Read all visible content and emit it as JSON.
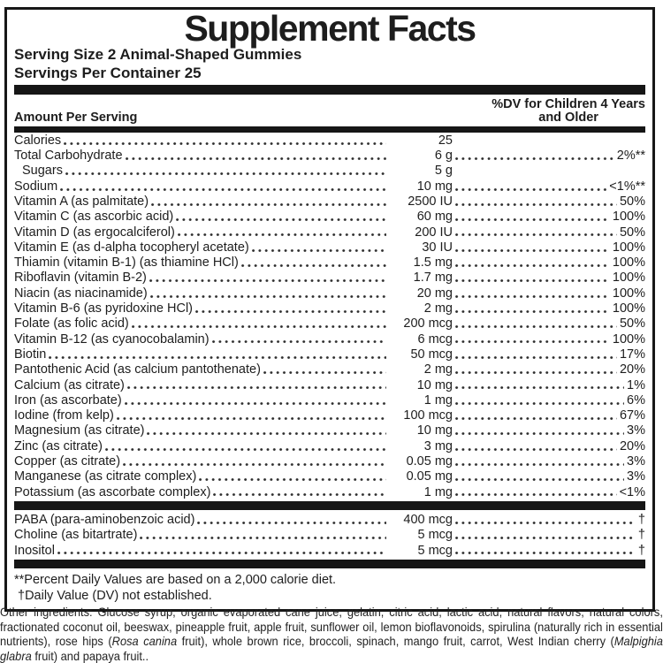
{
  "title": "Supplement Facts",
  "serving": {
    "size": "Serving Size 2 Animal-Shaped Gummies",
    "per_container": "Servings Per Container 25"
  },
  "columns": {
    "left": "Amount Per Serving",
    "right_line1": "%DV for Children 4 Years",
    "right_line2": "and Older"
  },
  "nutrients": [
    {
      "name": "Calories",
      "amount": "25",
      "dv": ""
    },
    {
      "name": "Total Carbohydrate",
      "amount": "6 g",
      "dv": "2%**"
    },
    {
      "name": "Sugars",
      "amount": "5 g",
      "dv": "",
      "indent": true
    },
    {
      "name": "Sodium",
      "amount": "10 mg",
      "dv": "<1%**"
    },
    {
      "name": "Vitamin A (as palmitate)",
      "amount": "2500 IU",
      "dv": "50%"
    },
    {
      "name": "Vitamin C (as ascorbic acid)",
      "amount": "60 mg",
      "dv": "100%"
    },
    {
      "name": "Vitamin D (as ergocalciferol)",
      "amount": "200 IU",
      "dv": "50%"
    },
    {
      "name": "Vitamin E (as d-alpha tocopheryl acetate)",
      "amount": "30 IU",
      "dv": "100%"
    },
    {
      "name": "Thiamin (vitamin B-1) (as thiamine HCl)",
      "amount": "1.5 mg",
      "dv": "100%"
    },
    {
      "name": "Riboflavin (vitamin B-2)",
      "amount": "1.7 mg",
      "dv": "100%"
    },
    {
      "name": "Niacin (as niacinamide)",
      "amount": "20 mg",
      "dv": "100%"
    },
    {
      "name": "Vitamin B-6 (as pyridoxine HCl)",
      "amount": "2 mg",
      "dv": "100%"
    },
    {
      "name": "Folate (as folic acid)",
      "amount": "200 mcg",
      "dv": "50%"
    },
    {
      "name": "Vitamin B-12 (as cyanocobalamin)",
      "amount": "6 mcg",
      "dv": "100%"
    },
    {
      "name": "Biotin",
      "amount": "50 mcg",
      "dv": "17%"
    },
    {
      "name": "Pantothenic Acid (as calcium pantothenate)",
      "amount": "2 mg",
      "dv": "20%"
    },
    {
      "name": "Calcium (as citrate)",
      "amount": "10 mg",
      "dv": "1%"
    },
    {
      "name": "Iron (as ascorbate)",
      "amount": "1 mg",
      "dv": "6%"
    },
    {
      "name": "Iodine (from kelp)",
      "amount": "100 mcg",
      "dv": "67%"
    },
    {
      "name": "Magnesium (as citrate)",
      "amount": "10 mg",
      "dv": "3%"
    },
    {
      "name": "Zinc (as citrate)",
      "amount": "3 mg",
      "dv": "20%"
    },
    {
      "name": "Copper (as citrate)",
      "amount": "0.05 mg",
      "dv": "3%"
    },
    {
      "name": "Manganese (as citrate complex)",
      "amount": "0.05 mg",
      "dv": "3%"
    },
    {
      "name": "Potassium (as ascorbate complex)",
      "amount": "1 mg",
      "dv": "<1%"
    }
  ],
  "other_nutrients": [
    {
      "name": "PABA (para-aminobenzoic acid)",
      "amount": "400 mcg",
      "dv": "†"
    },
    {
      "name": "Choline (as bitartrate)",
      "amount": "5 mcg",
      "dv": "†"
    },
    {
      "name": "Inositol",
      "amount": "5 mcg",
      "dv": "†"
    }
  ],
  "footnotes": [
    "**Percent Daily Values are based on a 2,000 calorie diet.",
    "†Daily Value (DV) not established."
  ],
  "other_ingredients": {
    "segments": [
      {
        "text": "Other ingredients: Glucose syrup, organic evaporated cane juice, gelatin, citric acid, lactic acid, natural flavors, natural colors, fractionated coconut oil, beeswax, pineapple fruit, apple fruit, sunflower oil, lemon bioflavonoids, spirulina (naturally rich in essential nutrients), rose hips (",
        "italic": false
      },
      {
        "text": "Rosa canina",
        "italic": true
      },
      {
        "text": " fruit), whole brown rice, broccoli, spinach, mango fruit, carrot, West Indian cherry (",
        "italic": false
      },
      {
        "text": "Malpighia glabra",
        "italic": true
      },
      {
        "text": " fruit) and papaya fruit..",
        "italic": false
      }
    ]
  },
  "colors": {
    "ink": "#1d1d1d",
    "background": "#ffffff"
  }
}
